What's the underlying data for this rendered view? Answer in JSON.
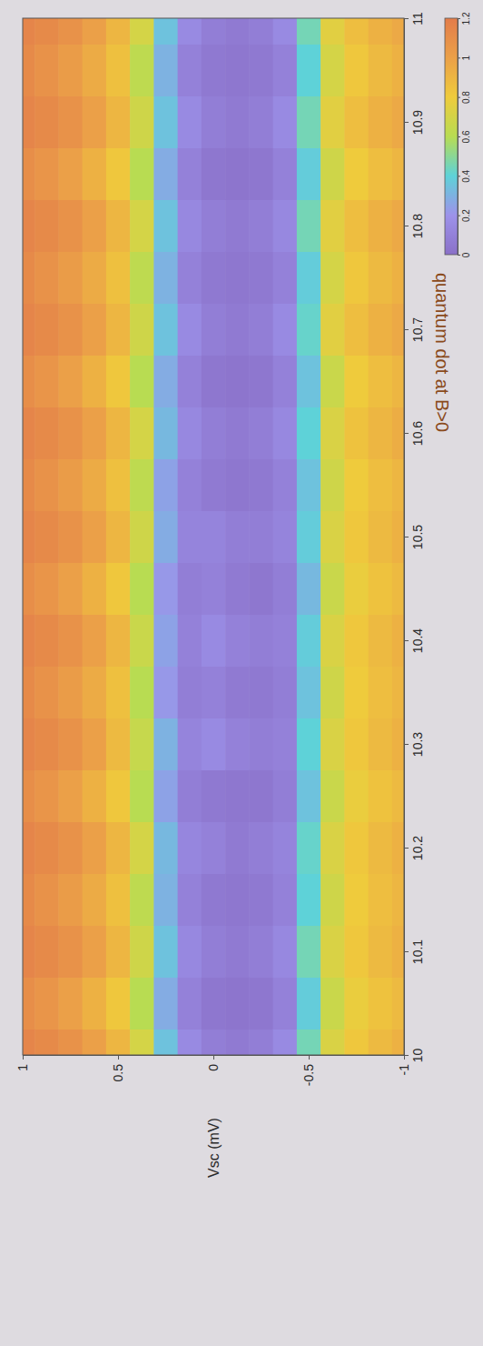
{
  "chart_data": {
    "type": "heatmap",
    "title": "quantum dot at B>0",
    "y_label": "Vsc (mV)",
    "x": [
      10,
      10.05,
      10.1,
      10.15,
      10.2,
      10.25,
      10.3,
      10.35,
      10.4,
      10.45,
      10.5,
      10.55,
      10.6,
      10.65,
      10.7,
      10.75,
      10.8,
      10.85,
      10.9,
      10.95,
      11
    ],
    "y": [
      1,
      0.875,
      0.75,
      0.625,
      0.5,
      0.375,
      0.25,
      0.125,
      0,
      -0.125,
      -0.25,
      -0.375,
      -0.5,
      -0.625,
      -0.75,
      -0.875,
      -1
    ],
    "xlim": [
      10,
      11
    ],
    "ylim": [
      -1,
      1
    ],
    "xticks": [
      10,
      10.1,
      10.2,
      10.3,
      10.4,
      10.5,
      10.6,
      10.7,
      10.8,
      10.9,
      11
    ],
    "yticks": [
      1,
      0.5,
      0,
      -0.5,
      -1
    ],
    "cells": [
      [
        1.15,
        1.1,
        1.15,
        1.12,
        1.15,
        1.1,
        1.15,
        1.12,
        1.15,
        1.1,
        1.15,
        1.12,
        1.15,
        1.1,
        1.15,
        1.12,
        1.15,
        1.1,
        1.15,
        1.12,
        1.15
      ],
      [
        1.12,
        1.06,
        1.12,
        1.08,
        1.12,
        1.06,
        1.12,
        1.08,
        1.12,
        1.06,
        1.12,
        1.08,
        1.12,
        1.06,
        1.12,
        1.08,
        1.12,
        1.06,
        1.12,
        1.08,
        1.12
      ],
      [
        1.08,
        1.0,
        1.08,
        1.02,
        1.08,
        1.0,
        1.08,
        1.02,
        1.08,
        1.0,
        1.08,
        1.02,
        1.08,
        1.0,
        1.08,
        1.02,
        1.08,
        1.0,
        1.08,
        1.02,
        1.08
      ],
      [
        1.0,
        0.92,
        1.0,
        0.95,
        1.0,
        0.92,
        1.0,
        0.95,
        1.0,
        0.92,
        1.0,
        0.95,
        1.0,
        0.92,
        1.0,
        0.95,
        1.0,
        0.92,
        1.0,
        0.95,
        1.0
      ],
      [
        0.9,
        0.82,
        0.9,
        0.85,
        0.9,
        0.82,
        0.88,
        0.85,
        0.9,
        0.82,
        0.9,
        0.85,
        0.9,
        0.82,
        0.9,
        0.85,
        0.9,
        0.82,
        0.9,
        0.85,
        0.9
      ],
      [
        0.7,
        0.6,
        0.68,
        0.62,
        0.7,
        0.6,
        0.65,
        0.6,
        0.66,
        0.6,
        0.68,
        0.62,
        0.7,
        0.6,
        0.68,
        0.62,
        0.7,
        0.6,
        0.68,
        0.62,
        0.7
      ],
      [
        0.35,
        0.28,
        0.35,
        0.3,
        0.32,
        0.25,
        0.3,
        0.22,
        0.25,
        0.22,
        0.28,
        0.25,
        0.32,
        0.28,
        0.35,
        0.3,
        0.35,
        0.28,
        0.35,
        0.3,
        0.35
      ],
      [
        0.15,
        0.1,
        0.14,
        0.1,
        0.13,
        0.08,
        0.12,
        0.08,
        0.1,
        0.08,
        0.12,
        0.1,
        0.14,
        0.1,
        0.15,
        0.1,
        0.14,
        0.1,
        0.15,
        0.1,
        0.15
      ],
      [
        0.08,
        0.04,
        0.08,
        0.05,
        0.1,
        0.05,
        0.15,
        0.1,
        0.15,
        0.1,
        0.12,
        0.06,
        0.08,
        0.04,
        0.08,
        0.05,
        0.08,
        0.04,
        0.08,
        0.05,
        0.08
      ],
      [
        0.06,
        0.03,
        0.06,
        0.04,
        0.06,
        0.04,
        0.1,
        0.06,
        0.1,
        0.06,
        0.08,
        0.04,
        0.06,
        0.03,
        0.06,
        0.04,
        0.06,
        0.03,
        0.06,
        0.04,
        0.06
      ],
      [
        0.08,
        0.04,
        0.08,
        0.05,
        0.08,
        0.04,
        0.08,
        0.05,
        0.08,
        0.04,
        0.08,
        0.05,
        0.08,
        0.04,
        0.08,
        0.05,
        0.08,
        0.04,
        0.08,
        0.05,
        0.08
      ],
      [
        0.15,
        0.1,
        0.14,
        0.1,
        0.12,
        0.08,
        0.1,
        0.08,
        0.1,
        0.08,
        0.12,
        0.1,
        0.14,
        0.1,
        0.15,
        0.1,
        0.14,
        0.1,
        0.15,
        0.1,
        0.15
      ],
      [
        0.45,
        0.38,
        0.45,
        0.4,
        0.42,
        0.35,
        0.4,
        0.35,
        0.38,
        0.32,
        0.38,
        0.35,
        0.4,
        0.35,
        0.42,
        0.38,
        0.45,
        0.38,
        0.45,
        0.4,
        0.45
      ],
      [
        0.72,
        0.66,
        0.72,
        0.68,
        0.72,
        0.66,
        0.72,
        0.68,
        0.72,
        0.66,
        0.72,
        0.68,
        0.72,
        0.66,
        0.75,
        0.7,
        0.75,
        0.68,
        0.75,
        0.7,
        0.75
      ],
      [
        0.82,
        0.78,
        0.82,
        0.8,
        0.82,
        0.78,
        0.82,
        0.8,
        0.82,
        0.78,
        0.82,
        0.8,
        0.84,
        0.8,
        0.86,
        0.82,
        0.86,
        0.8,
        0.86,
        0.82,
        0.86
      ],
      [
        0.88,
        0.84,
        0.88,
        0.86,
        0.88,
        0.84,
        0.88,
        0.86,
        0.88,
        0.84,
        0.88,
        0.86,
        0.9,
        0.86,
        0.92,
        0.88,
        0.92,
        0.86,
        0.92,
        0.88,
        0.92
      ],
      [
        0.92,
        0.88,
        0.92,
        0.9,
        0.92,
        0.88,
        0.92,
        0.9,
        0.92,
        0.88,
        0.92,
        0.9,
        0.94,
        0.9,
        0.96,
        0.92,
        0.96,
        0.9,
        0.96,
        0.92,
        0.96
      ]
    ],
    "colorbar": {
      "range": [
        0,
        1.2
      ],
      "ticks": [
        0,
        0.2,
        0.4,
        0.6,
        0.8,
        1,
        1.2
      ]
    }
  }
}
